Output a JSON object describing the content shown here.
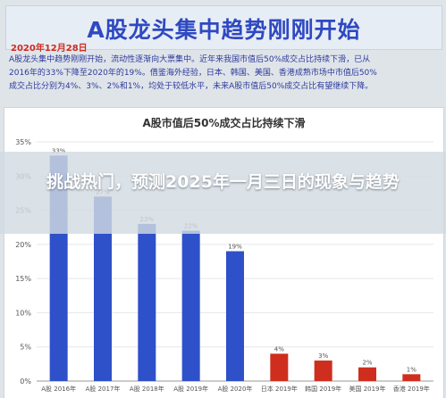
{
  "banner": {
    "title": "A股龙头集中趋势刚刚开始"
  },
  "date": "2020年12月28日",
  "intro_lines": [
    "A股龙头集中趋势刚刚开始，流动性逐渐向大票集中。近年来我国市值后50%成交占比持续下滑，已从",
    "2016年的33%下降至2020年的19%。借鉴海外经验，日本、韩国、美国、香港成熟市场中市值后50%",
    "成交占比分别为4%、3%、2%和1%，均处于较低水平，未来A股市值后50%成交占比有望继续下降。"
  ],
  "overlay": {
    "title": "挑战热门，预测2025年一月三日的现象与趋势"
  },
  "colors": {
    "blue_bar": "#2e50c9",
    "red_bar": "#cf2e1f",
    "grid": "#e5e7ea",
    "axis_text": "#555555"
  },
  "chart_data": {
    "type": "bar",
    "title": "A股市值后50%成交占比持续下滑",
    "categories": [
      "A股 2016年",
      "A股 2017年",
      "A股 2018年",
      "A股 2019年",
      "A股 2020年",
      "日本 2019年",
      "韩国 2019年",
      "美国 2019年",
      "香港 2019年"
    ],
    "values": [
      33,
      27,
      23,
      22,
      19,
      4,
      3,
      2,
      1
    ],
    "data_labels": [
      "33%",
      "27%",
      "23%",
      "22%",
      "19%",
      "4%",
      "3%",
      "2%",
      "1%"
    ],
    "bar_colors": [
      "#2e50c9",
      "#2e50c9",
      "#2e50c9",
      "#2e50c9",
      "#2e50c9",
      "#cf2e1f",
      "#cf2e1f",
      "#cf2e1f",
      "#cf2e1f"
    ],
    "y_ticks": [
      "0%",
      "5%",
      "10%",
      "15%",
      "20%",
      "25%",
      "30%",
      "35%"
    ],
    "ylim": [
      0,
      35
    ],
    "grid": true
  }
}
